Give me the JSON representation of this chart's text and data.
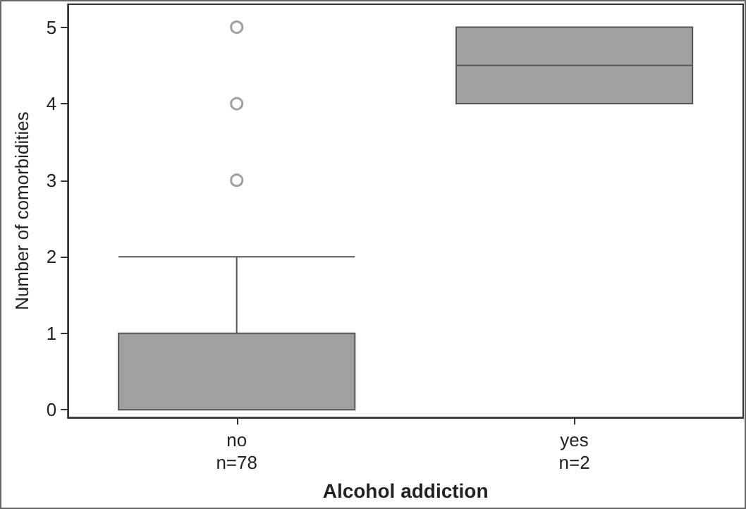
{
  "chart_data": {
    "type": "box",
    "xlabel": "Alcohol addiction",
    "ylabel": "Number of comorbidities",
    "categories": [
      "no\nn=78",
      "yes\nn=2"
    ],
    "boxes": [
      {
        "low": 0,
        "q1": 0,
        "median": 0,
        "q3": 1,
        "high": 2,
        "outliers": [
          3,
          4,
          5
        ]
      },
      {
        "low": 4,
        "q1": 4,
        "median": 4.5,
        "q3": 5,
        "high": 5
      }
    ],
    "color": "#a0a0a4",
    "ylim": [
      -0.1,
      5.3
    ],
    "yticks": [
      0,
      1,
      2,
      3,
      4,
      5
    ],
    "legend": false
  }
}
